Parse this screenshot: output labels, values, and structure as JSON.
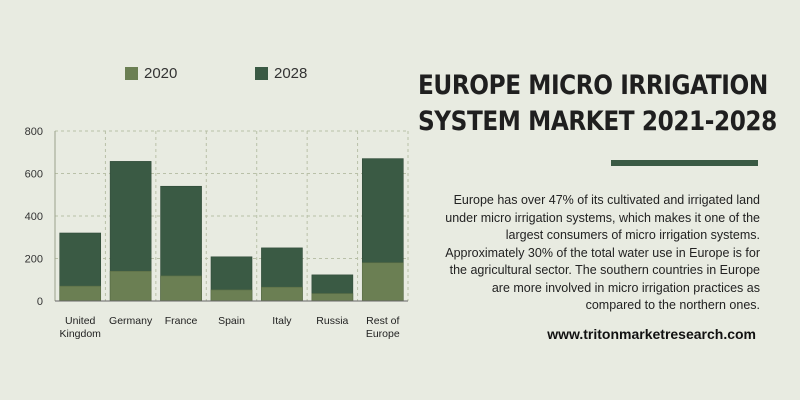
{
  "title_lines": [
    "EUROPE MICRO IRRIGATION",
    "SYSTEM MARKET 2021-2028"
  ],
  "description": "Europe has over 47% of its cultivated and irrigated land under micro irrigation systems, which makes it one of the largest consumers of micro irrigation systems. Approximately 30% of the total water use in Europe is for the agricultural sector. The southern countries in Europe are more involved in micro irrigation practices as compared to the northern ones.",
  "website": "www.tritonmarketresearch.com",
  "colors": {
    "s2020": "#6b7f53",
    "s2028": "#3a5a44",
    "grid": "#b9c0a8",
    "rule": "#3a5a44"
  },
  "chart_data": {
    "type": "bar",
    "stacked": "overlapping",
    "categories": [
      [
        "United",
        "Kingdom"
      ],
      [
        "Germany"
      ],
      [
        "France"
      ],
      [
        "Spain"
      ],
      [
        "Italy"
      ],
      [
        "Russia"
      ],
      [
        "Rest of",
        "Europe"
      ]
    ],
    "series": [
      {
        "name": "2020",
        "values": [
          70,
          140,
          118,
          52,
          65,
          35,
          180
        ]
      },
      {
        "name": "2028",
        "values": [
          320,
          657,
          540,
          208,
          250,
          123,
          670
        ]
      }
    ],
    "ylim": [
      0,
      800
    ],
    "yticks": [
      0,
      200,
      400,
      600,
      800
    ],
    "grid": true,
    "legend": "top"
  }
}
